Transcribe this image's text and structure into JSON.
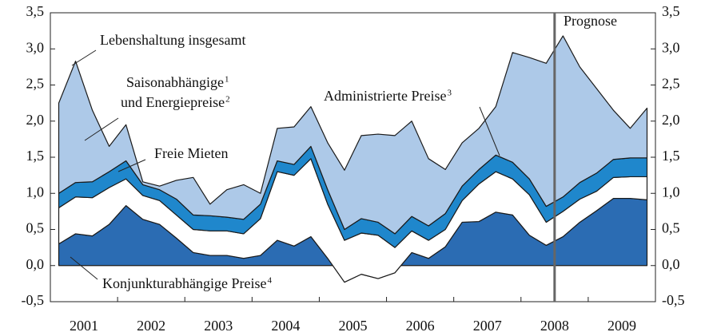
{
  "chart_data": {
    "type": "stacked_area",
    "x_labels": [
      "2001",
      "2002",
      "2003",
      "2004",
      "2005",
      "2006",
      "2007",
      "2008",
      "2009"
    ],
    "periods_per_label": 4,
    "ylim": [
      -0.5,
      3.5
    ],
    "yticks": [
      {
        "value": -0.5,
        "label": "-0,5"
      },
      {
        "value": 0,
        "label": "0,0"
      },
      {
        "value": 0.5,
        "label": "0,5"
      },
      {
        "value": 1,
        "label": "1,0"
      },
      {
        "value": 1.5,
        "label": "1,5"
      },
      {
        "value": 2,
        "label": "2,0"
      },
      {
        "value": 2.5,
        "label": "2,5"
      },
      {
        "value": 3,
        "label": "3,0"
      },
      {
        "value": 3.5,
        "label": "3,5"
      }
    ],
    "forecast_label": "Prognose",
    "total_label": "Lebenshaltung insgesamt",
    "series": [
      {
        "label": [
          {
            "text": "Konjunkturabhängige Preise",
            "sup": "4"
          }
        ],
        "color": "#2b6cb3",
        "values": [
          0.3,
          0.44,
          0.41,
          0.57,
          0.83,
          0.64,
          0.57,
          0.38,
          0.18,
          0.14,
          0.14,
          0.1,
          0.14,
          0.35,
          0.27,
          0.4,
          0.1,
          -0.23,
          -0.12,
          -0.18,
          -0.1,
          0.18,
          0.1,
          0.26,
          0.6,
          0.61,
          0.74,
          0.7,
          0.42,
          0.28,
          0.4,
          0.6,
          0.76,
          0.93,
          0.93,
          0.91
        ]
      },
      {
        "label": [
          {
            "text": "Freie Mieten"
          }
        ],
        "color": "#ffffff",
        "values": [
          0.5,
          0.51,
          0.53,
          0.51,
          0.37,
          0.33,
          0.33,
          0.32,
          0.32,
          0.34,
          0.34,
          0.34,
          0.51,
          0.95,
          0.98,
          1.08,
          0.75,
          0.58,
          0.57,
          0.6,
          0.35,
          0.3,
          0.25,
          0.24,
          0.3,
          0.52,
          0.56,
          0.5,
          0.56,
          0.32,
          0.35,
          0.32,
          0.27,
          0.29,
          0.3,
          0.32
        ]
      },
      {
        "label": [
          {
            "text": "Administrierte Preise",
            "sup": "3"
          }
        ],
        "color": "#1f87cc",
        "values": [
          0.2,
          0.2,
          0.22,
          0.22,
          0.25,
          0.15,
          0.15,
          0.22,
          0.2,
          0.21,
          0.19,
          0.2,
          0.2,
          0.15,
          0.15,
          0.17,
          0.2,
          0.15,
          0.2,
          0.18,
          0.19,
          0.2,
          0.2,
          0.22,
          0.2,
          0.2,
          0.23,
          0.23,
          0.22,
          0.22,
          0.2,
          0.23,
          0.25,
          0.25,
          0.26,
          0.26
        ]
      },
      {
        "label": [
          {
            "text": "Saisonabhängige",
            "sup": "1"
          },
          {
            "text": "und Energiepreise",
            "sup": "2"
          }
        ],
        "color": "#adc9e8",
        "values": [
          1.25,
          1.68,
          0.99,
          0.35,
          0.5,
          0.04,
          0.05,
          0.26,
          0.52,
          0.16,
          0.38,
          0.48,
          0.15,
          0.45,
          0.52,
          0.55,
          0.65,
          0.82,
          1.15,
          1.22,
          1.36,
          1.32,
          0.93,
          0.61,
          0.6,
          0.57,
          0.67,
          1.52,
          1.68,
          1.98,
          2.23,
          1.6,
          1.17,
          0.68,
          0.41,
          0.69
        ]
      }
    ]
  }
}
